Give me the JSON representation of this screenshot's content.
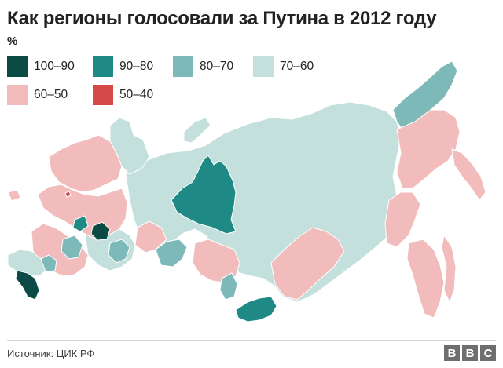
{
  "title": "Как регионы голосовали за Путина в 2012 году",
  "unit": "%",
  "legend": [
    {
      "label": "100–90",
      "color": "#0b4a45"
    },
    {
      "label": "90–80",
      "color": "#1f8a85"
    },
    {
      "label": "80–70",
      "color": "#7db9b9"
    },
    {
      "label": "70–60",
      "color": "#c4e0dd"
    },
    {
      "label": "60–50",
      "color": "#f1bcbb"
    },
    {
      "label": "50–40",
      "color": "#d6494b"
    }
  ],
  "map": {
    "colors": {
      "c100_90": "#0b4a45",
      "c90_80": "#1f8a85",
      "c80_70": "#7db9b9",
      "c70_60": "#c4e0dd",
      "c60_50": "#f1bcbb",
      "c50_40": "#d6494b"
    }
  },
  "footer": {
    "source": "Источник: ЦИК РФ",
    "logo": [
      "B",
      "B",
      "C"
    ]
  }
}
